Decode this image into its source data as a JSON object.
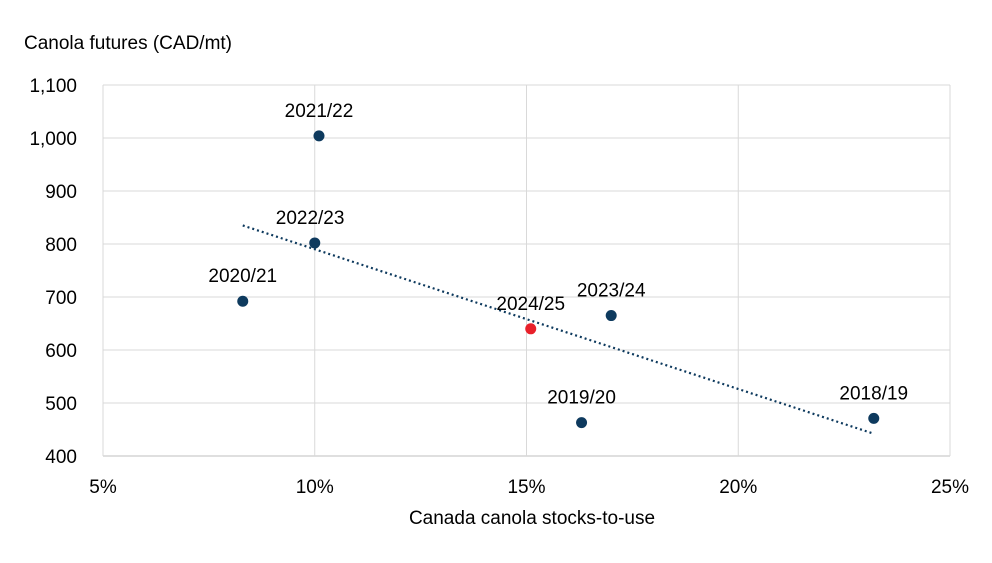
{
  "chart_data": {
    "type": "scatter",
    "title": "",
    "ylabel": "Canola futures (CAD/mt)",
    "xlabel": "Canada canola stocks-to-use",
    "xlim": [
      0.05,
      0.25
    ],
    "ylim": [
      400,
      1100
    ],
    "x_ticks": [
      0.05,
      0.1,
      0.15,
      0.2,
      0.25
    ],
    "x_tick_labels": [
      "5%",
      "10%",
      "15%",
      "20%",
      "25%"
    ],
    "y_ticks": [
      400,
      500,
      600,
      700,
      800,
      900,
      1000,
      1100
    ],
    "y_tick_labels": [
      "400",
      "500",
      "600",
      "700",
      "800",
      "900",
      "1,000",
      "1,100"
    ],
    "grid": true,
    "points": [
      {
        "label": "2018/19",
        "x": 0.232,
        "y": 471,
        "color": "#0e3a5e",
        "label_pos": "above"
      },
      {
        "label": "2019/20",
        "x": 0.163,
        "y": 463,
        "color": "#0e3a5e",
        "label_pos": "above"
      },
      {
        "label": "2020/21",
        "x": 0.083,
        "y": 692,
        "color": "#0e3a5e",
        "label_pos": "above"
      },
      {
        "label": "2021/22",
        "x": 0.101,
        "y": 1004,
        "color": "#0e3a5e",
        "label_pos": "above"
      },
      {
        "label": "2022/23",
        "x": 0.1,
        "y": 802,
        "color": "#0e3a5e",
        "label_pos": "above-right"
      },
      {
        "label": "2023/24",
        "x": 0.17,
        "y": 665,
        "color": "#0e3a5e",
        "label_pos": "above"
      },
      {
        "label": "2024/25",
        "x": 0.151,
        "y": 640,
        "color": "#e8202a",
        "label_pos": "above"
      }
    ],
    "trendline": {
      "style": "dotted",
      "color": "#0e3a5e",
      "x": [
        0.083,
        0.232
      ],
      "y": [
        835,
        442
      ]
    }
  }
}
